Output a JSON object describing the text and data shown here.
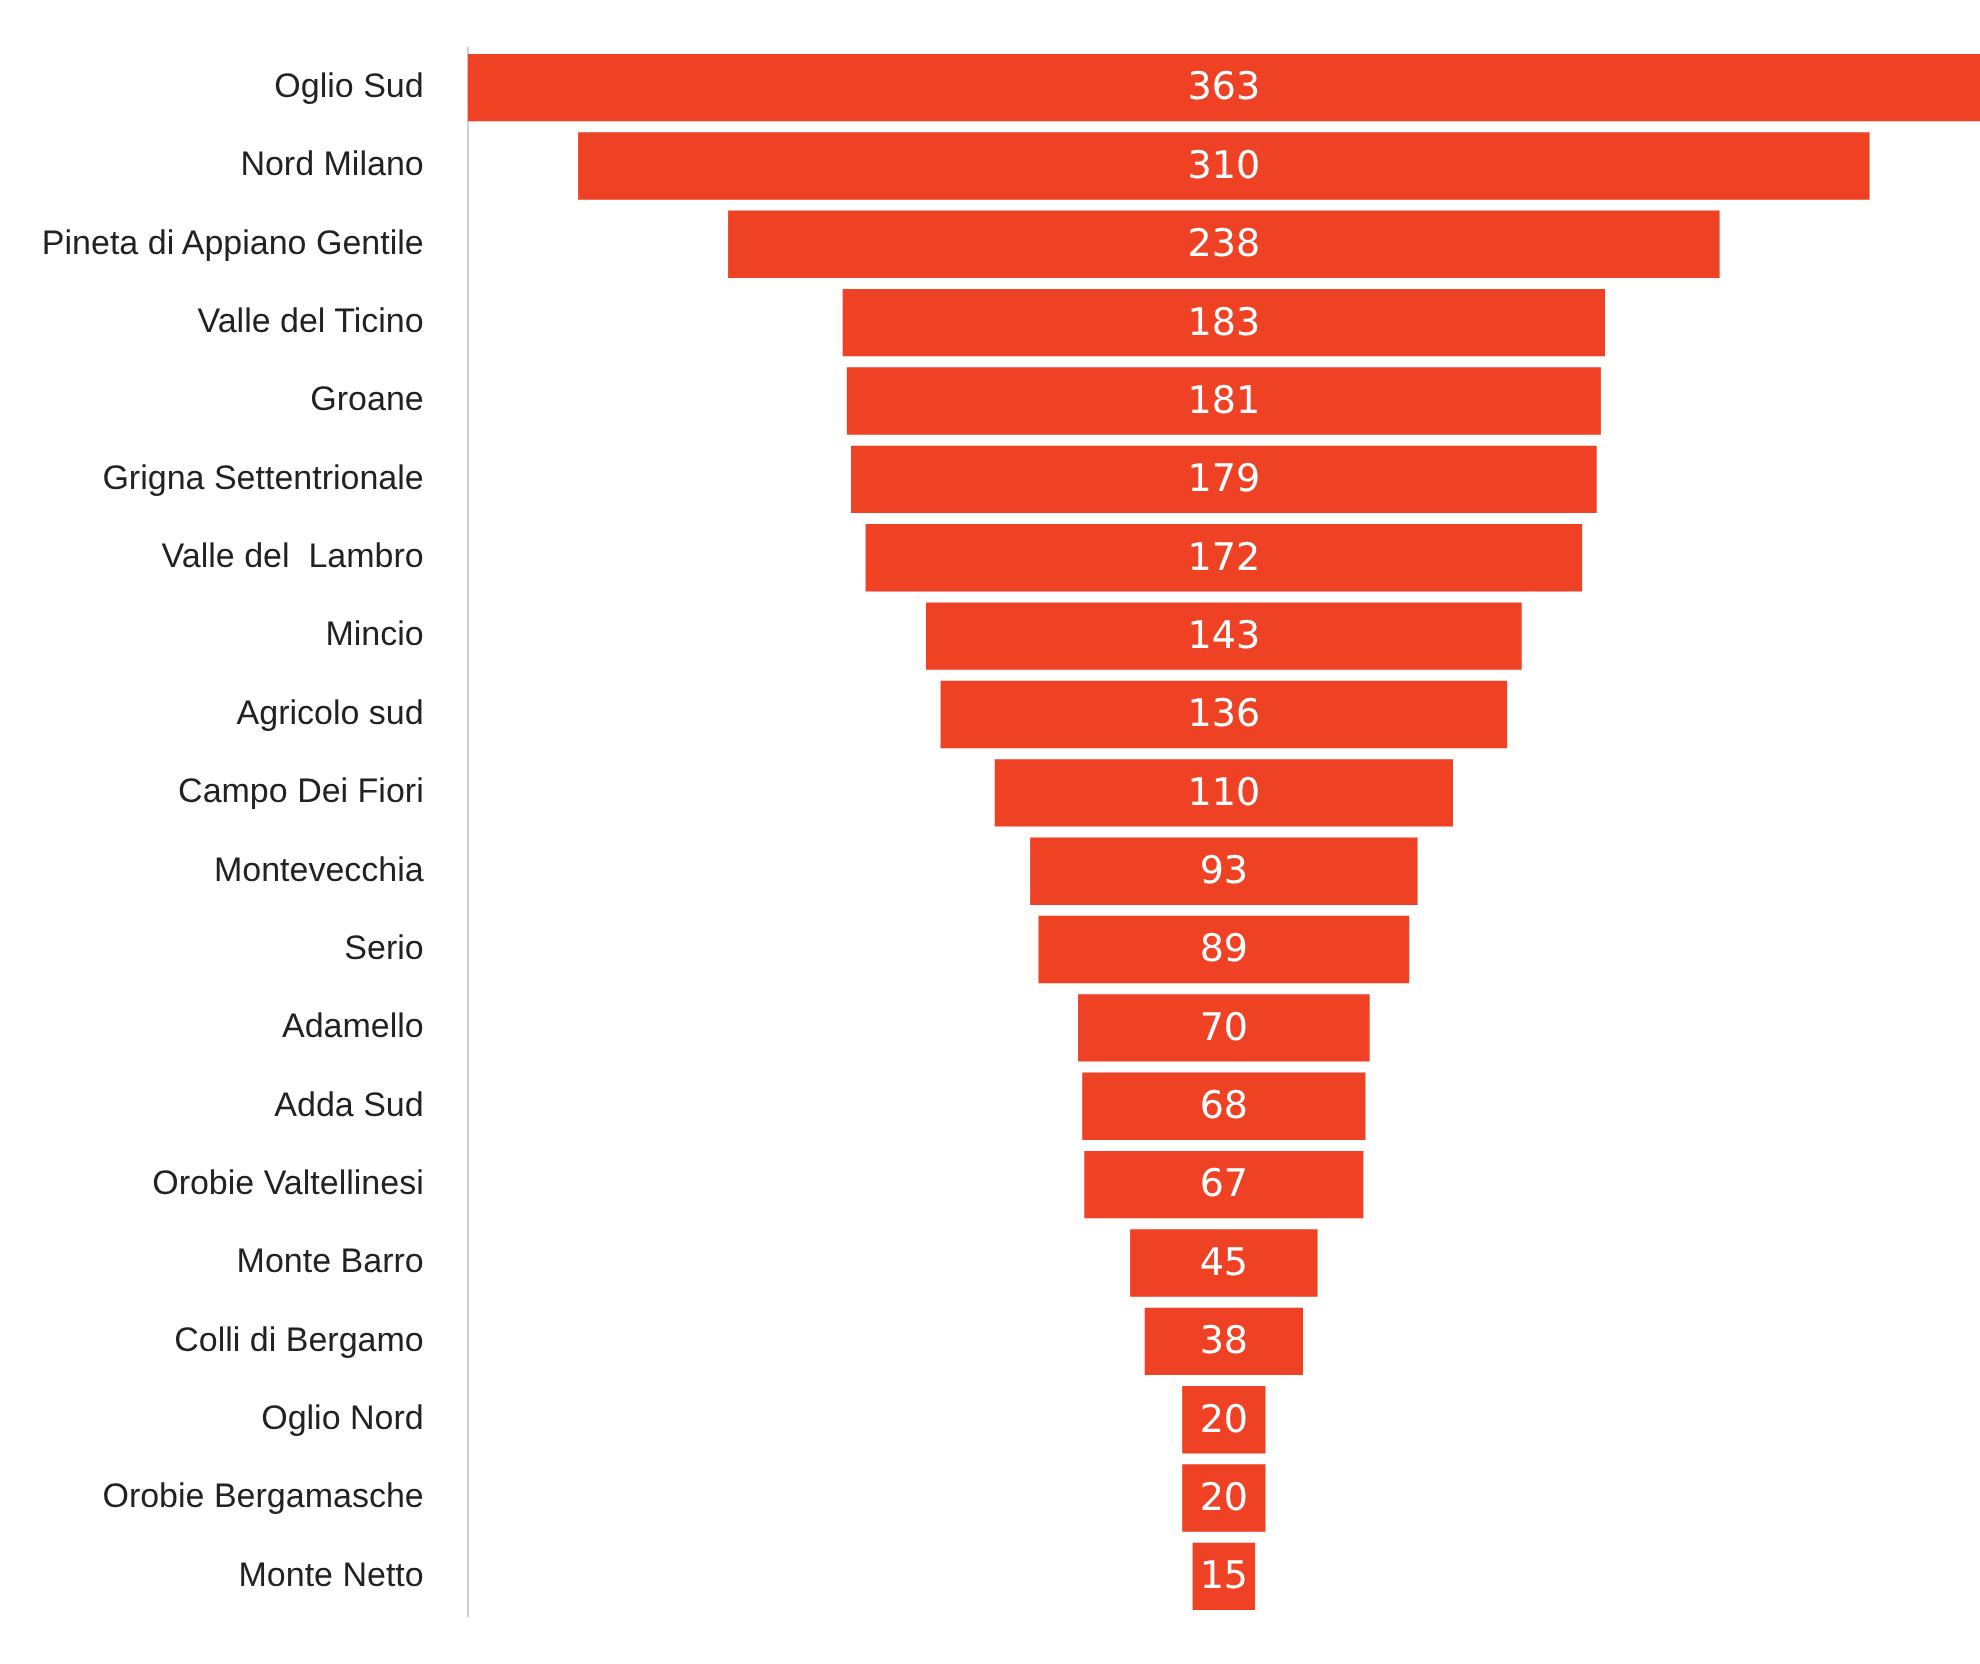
{
  "chart_data": {
    "type": "other",
    "categories": [
      "Oglio Sud",
      "Nord Milano",
      "Pineta di Appiano Gentile",
      "Valle del Ticino",
      "Groane",
      "Grigna Settentrionale",
      "Valle del  Lambro",
      "Mincio",
      "Agricolo sud",
      "Campo Dei Fiori",
      "Montevecchia",
      "Serio",
      "Adamello",
      "Adda Sud",
      "Orobie Valtellinesi",
      "Monte Barro",
      "Colli di Bergamo",
      "Oglio Nord",
      "Orobie Bergamasche",
      "Monte Netto"
    ],
    "values": [
      363,
      310,
      238,
      183,
      181,
      179,
      172,
      143,
      136,
      110,
      93,
      89,
      70,
      68,
      67,
      45,
      38,
      20,
      20,
      15
    ],
    "color": "#ef4123",
    "data_labels": true
  }
}
